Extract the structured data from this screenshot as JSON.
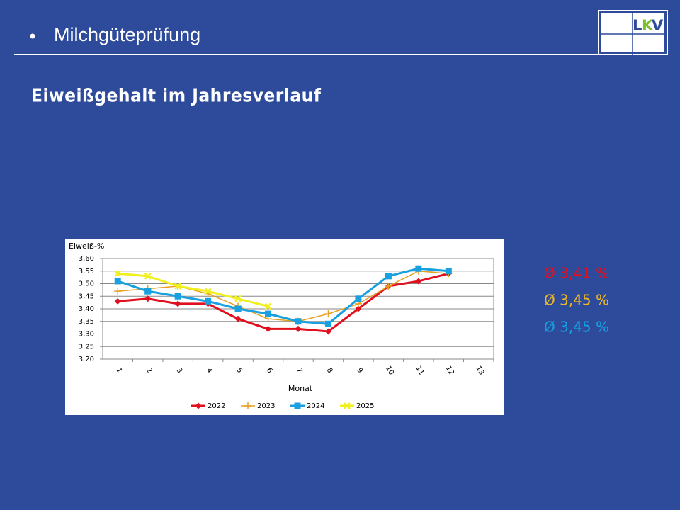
{
  "header": {
    "title": "Milchgüteprüfung",
    "logo": [
      "L",
      "K",
      "V"
    ]
  },
  "subtitle": "Eiweißgehalt im Jahresverlauf",
  "chart_data": {
    "type": "line",
    "ylabel": "Eiweiß-%",
    "xlabel": "Monat",
    "categories": [
      "1",
      "2",
      "3",
      "4",
      "5",
      "6",
      "7",
      "8",
      "9",
      "10",
      "11",
      "12",
      "13"
    ],
    "ylim": [
      3.2,
      3.6
    ],
    "yticks": [
      {
        "value": 3.2,
        "label": "3,20"
      },
      {
        "value": 3.25,
        "label": "3,25"
      },
      {
        "value": 3.3,
        "label": "3,30"
      },
      {
        "value": 3.35,
        "label": "3,35"
      },
      {
        "value": 3.4,
        "label": "3,40"
      },
      {
        "value": 3.45,
        "label": "3,45"
      },
      {
        "value": 3.5,
        "label": "3,50"
      },
      {
        "value": 3.55,
        "label": "3,55"
      },
      {
        "value": 3.6,
        "label": "3,60"
      }
    ],
    "grid": true,
    "legend": "bottom",
    "series": [
      {
        "name": "2022",
        "color": "#e0101e",
        "marker": "diamond",
        "values": [
          3.43,
          3.44,
          3.42,
          3.42,
          3.36,
          3.32,
          3.32,
          3.31,
          3.4,
          3.49,
          3.51,
          3.54,
          null
        ]
      },
      {
        "name": "2023",
        "color": "#e8a020",
        "marker": "plus",
        "values": [
          3.47,
          3.48,
          3.49,
          3.46,
          3.41,
          3.36,
          3.35,
          3.38,
          3.42,
          3.49,
          3.55,
          3.54,
          null
        ]
      },
      {
        "name": "2024",
        "color": "#18a0e0",
        "marker": "square",
        "values": [
          3.51,
          3.47,
          3.45,
          3.43,
          3.4,
          3.38,
          3.35,
          3.34,
          3.44,
          3.53,
          3.56,
          3.55,
          null
        ]
      },
      {
        "name": "2025",
        "color": "#f0f020",
        "marker": "x",
        "values": [
          3.54,
          3.53,
          3.49,
          3.47,
          3.44,
          3.41,
          null,
          null,
          null,
          null,
          null,
          null,
          null
        ]
      }
    ],
    "annotations": [
      {
        "text": "Ø 3,41 %",
        "color": "#e0101e"
      },
      {
        "text": "Ø 3,45 %",
        "color": "#f0b820"
      },
      {
        "text": "Ø 3,45 %",
        "color": "#18a0e0"
      }
    ]
  }
}
